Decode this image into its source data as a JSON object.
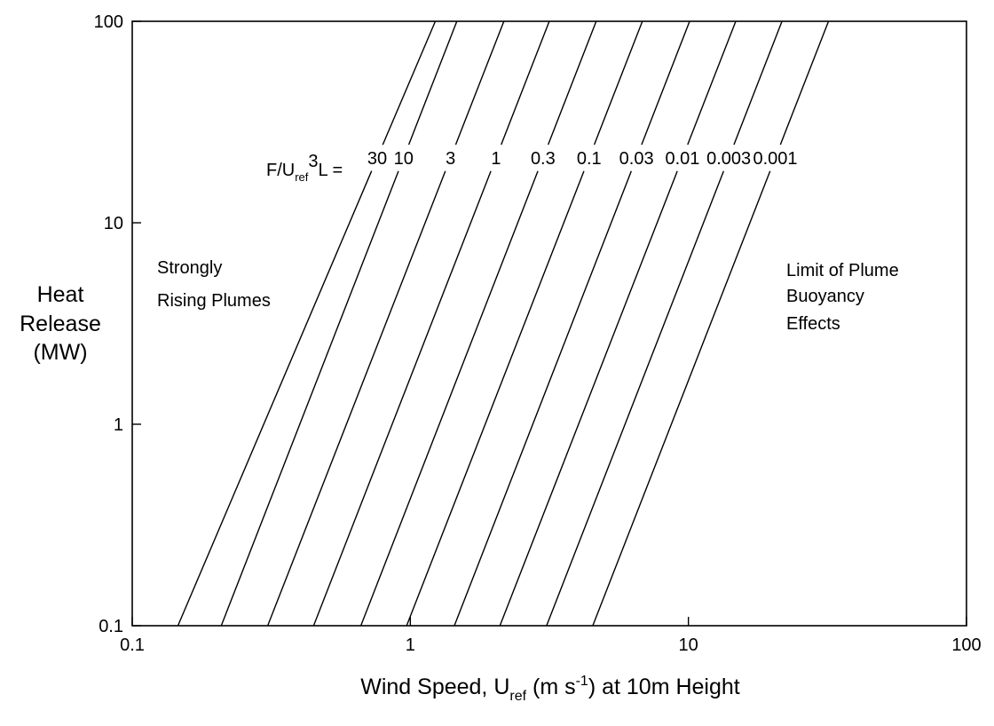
{
  "chart_data": {
    "type": "line",
    "xscale": "log",
    "yscale": "log",
    "xlim": [
      0.1,
      100
    ],
    "ylim": [
      0.1,
      100
    ],
    "x_ticks": [
      "0.1",
      "1",
      "10",
      "100"
    ],
    "y_ticks": [
      "0.1",
      "1",
      "10",
      "100"
    ],
    "ylabel_lines": [
      "Heat",
      "Release",
      "(MW)"
    ],
    "xlabel": {
      "pre": "Wind Speed, U",
      "sub": "ref",
      "mid": " (m s",
      "sup": "-1",
      "post": ") at 10m Height"
    },
    "param_label": {
      "pre": "F/U",
      "sub": "ref",
      "sup": "3",
      "post": "L ="
    },
    "annotations": {
      "left": [
        "Strongly",
        "Rising Plumes"
      ],
      "right": [
        "Limit of Plume",
        "Buoyancy",
        "Effects"
      ]
    },
    "grid": false,
    "series": [
      {
        "name": "30",
        "x": [
          0.146,
          1.23
        ],
        "y": [
          0.1,
          100
        ]
      },
      {
        "name": "10",
        "x": [
          0.209,
          1.47
        ],
        "y": [
          0.1,
          100
        ]
      },
      {
        "name": "3",
        "x": [
          0.307,
          2.17
        ],
        "y": [
          0.1,
          100
        ]
      },
      {
        "name": "1",
        "x": [
          0.449,
          3.16
        ],
        "y": [
          0.1,
          100
        ]
      },
      {
        "name": "0.3",
        "x": [
          0.664,
          4.66
        ],
        "y": [
          0.1,
          100
        ]
      },
      {
        "name": "0.1",
        "x": [
          0.97,
          6.83
        ],
        "y": [
          0.1,
          100
        ]
      },
      {
        "name": "0.03",
        "x": [
          1.44,
          10.1
        ],
        "y": [
          0.1,
          100
        ]
      },
      {
        "name": "0.01",
        "x": [
          2.1,
          14.8
        ],
        "y": [
          0.1,
          100
        ]
      },
      {
        "name": "0.003",
        "x": [
          3.09,
          21.7
        ],
        "y": [
          0.1,
          100
        ]
      },
      {
        "name": "0.001",
        "x": [
          4.53,
          31.9
        ],
        "y": [
          0.1,
          100
        ]
      }
    ],
    "series_label_y": 21
  }
}
